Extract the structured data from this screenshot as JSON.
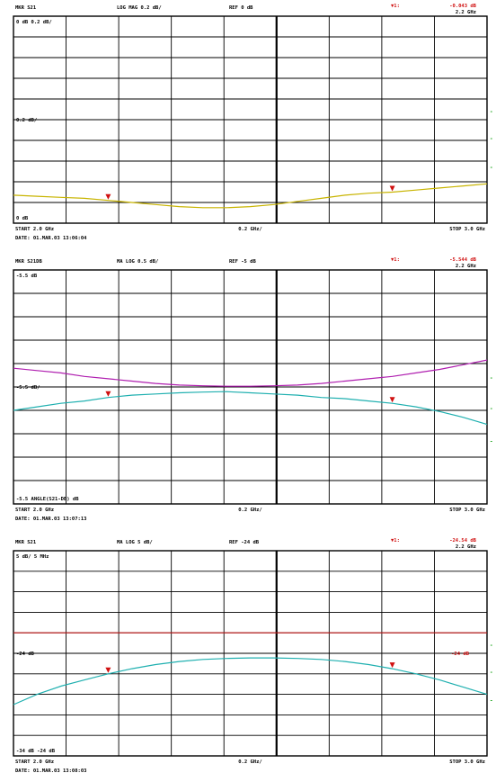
{
  "chart_data": [
    {
      "type": "line",
      "header": {
        "left": "MKR S21",
        "center": "LOG MAG 0.2 dB/",
        "right": "REF 0 dB"
      },
      "ref_label": "0 dB  0.2 dB/",
      "level_label": "0.2 dB/",
      "bottom_left": "0 dB",
      "footer": {
        "start": "START  2.0 GHz",
        "center": "0.2 GHz/",
        "stop": "STOP  3.0 GHz",
        "date": "DATE:  01.MAR.03  13:06:04"
      },
      "markers_text": [
        {
          "label": "▼1:",
          "value": "-0.043  dB",
          "freq": "2.2  GHz"
        },
        {
          "label": "▼2:",
          "value": "-0.043  dB",
          "freq": "2.8  GHz"
        }
      ],
      "markers_x": [
        2.2,
        2.8
      ],
      "xlim": [
        2.0,
        3.0
      ],
      "ylim": [
        -1.6,
        0.4
      ],
      "series": [
        {
          "color": "#c8b400",
          "x": [
            2.0,
            2.05,
            2.1,
            2.15,
            2.2,
            2.25,
            2.3,
            2.35,
            2.4,
            2.45,
            2.5,
            2.55,
            2.6,
            2.65,
            2.7,
            2.75,
            2.8,
            2.85,
            2.9,
            2.95,
            3.0
          ],
          "y": [
            -1.33,
            -1.34,
            -1.35,
            -1.36,
            -1.38,
            -1.4,
            -1.42,
            -1.44,
            -1.45,
            -1.45,
            -1.44,
            -1.42,
            -1.39,
            -1.36,
            -1.33,
            -1.31,
            -1.3,
            -1.28,
            -1.26,
            -1.24,
            -1.22
          ]
        }
      ]
    },
    {
      "type": "line",
      "header": {
        "left": "MKR S21DB",
        "center": "MA  LOG 0.5 dB/",
        "right": "REF -5 dB"
      },
      "ref_label": "-5.5 dB",
      "level_label": "-5.5 dB/",
      "bottom_left": "-5.5 ANGLE(S21-DB) dB",
      "footer": {
        "start": "START  2.0 GHz",
        "center": "0.2 GHz/",
        "stop": "STOP  3.0 GHz",
        "date": "DATE:  01.MAR.03  13:07:13"
      },
      "markers_text": [
        {
          "label": "▼1:",
          "value": "-5.544  dB",
          "freq": "2.2  GHz"
        },
        {
          "label": "▼2:",
          "value": "-5.555  dB",
          "freq": "2.8  GHz"
        }
      ],
      "markers_x": [
        2.2,
        2.8
      ],
      "xlim": [
        2.0,
        3.0
      ],
      "ylim": [
        -10,
        0
      ],
      "series": [
        {
          "color": "#b020b0",
          "x": [
            2.0,
            2.05,
            2.1,
            2.15,
            2.2,
            2.25,
            2.3,
            2.35,
            2.4,
            2.45,
            2.5,
            2.55,
            2.6,
            2.65,
            2.7,
            2.75,
            2.8,
            2.85,
            2.9,
            2.95,
            3.0
          ],
          "y": [
            -4.2,
            -4.3,
            -4.4,
            -4.55,
            -4.65,
            -4.75,
            -4.85,
            -4.92,
            -4.95,
            -4.97,
            -4.97,
            -4.95,
            -4.92,
            -4.85,
            -4.75,
            -4.65,
            -4.55,
            -4.4,
            -4.25,
            -4.05,
            -3.85
          ]
        },
        {
          "color": "#20b0b0",
          "x": [
            2.0,
            2.05,
            2.1,
            2.15,
            2.2,
            2.25,
            2.3,
            2.35,
            2.4,
            2.45,
            2.5,
            2.55,
            2.6,
            2.65,
            2.7,
            2.75,
            2.8,
            2.85,
            2.9,
            2.95,
            3.0
          ],
          "y": [
            -6.0,
            -5.85,
            -5.7,
            -5.6,
            -5.45,
            -5.35,
            -5.3,
            -5.25,
            -5.22,
            -5.2,
            -5.25,
            -5.3,
            -5.35,
            -5.45,
            -5.5,
            -5.6,
            -5.7,
            -5.85,
            -6.05,
            -6.3,
            -6.6
          ]
        }
      ]
    },
    {
      "type": "line",
      "header": {
        "left": "MKR S21",
        "center": "MA  LOG 5 dB/",
        "right": "REF -24 dB"
      },
      "ref_label": "5 dB/  5 MHz",
      "level_label": "-24 dB",
      "level_right": "-24 dB",
      "bottom_left": "-34 dB   -24 dB",
      "footer": {
        "start": "START  2.0 GHz",
        "center": "0.2 GHz/",
        "stop": "STOP  3.0 GHz",
        "date": "DATE:  01.MAR.03  13:08:03"
      },
      "markers_text": [
        {
          "label": "▼1:",
          "value": "-24.54  dB",
          "freq": "2.2  GHz"
        },
        {
          "label": "▼2:",
          "value": "-24.23  dB",
          "freq": "2.8  GHz"
        }
      ],
      "markers_x": [
        2.2,
        2.8
      ],
      "xlim": [
        2.0,
        3.0
      ],
      "ylim": [
        -35,
        -15
      ],
      "series": [
        {
          "color": "#c01818",
          "x": [
            2.0,
            3.0
          ],
          "y": [
            -23.0,
            -23.0
          ]
        },
        {
          "color": "#20b0b0",
          "x": [
            2.0,
            2.05,
            2.1,
            2.15,
            2.2,
            2.25,
            2.3,
            2.35,
            2.4,
            2.45,
            2.5,
            2.55,
            2.6,
            2.65,
            2.7,
            2.75,
            2.8,
            2.85,
            2.9,
            2.95,
            3.0
          ],
          "y": [
            -30.0,
            -29.0,
            -28.2,
            -27.6,
            -27.0,
            -26.5,
            -26.1,
            -25.8,
            -25.6,
            -25.5,
            -25.45,
            -25.45,
            -25.5,
            -25.6,
            -25.8,
            -26.1,
            -26.5,
            -27.0,
            -27.6,
            -28.3,
            -29.0
          ]
        }
      ]
    }
  ]
}
